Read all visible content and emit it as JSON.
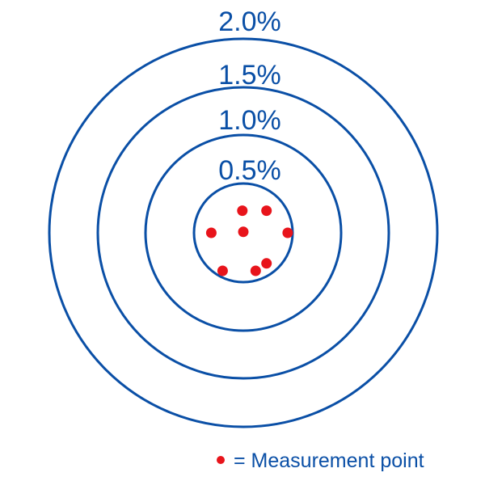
{
  "colors": {
    "ring": "#0a4fa6",
    "point": "#e8141b",
    "background": "#ffffff"
  },
  "rings": [
    {
      "label": "2.0%"
    },
    {
      "label": "1.5%"
    },
    {
      "label": "1.0%"
    },
    {
      "label": "0.5%"
    }
  ],
  "points": [
    {
      "x": -0.02,
      "y": 0.45
    },
    {
      "x": 0.47,
      "y": 0.45
    },
    {
      "x": -0.65,
      "y": 0.0
    },
    {
      "x": 0.0,
      "y": 0.02
    },
    {
      "x": 0.9,
      "y": 0.0
    },
    {
      "x": 0.47,
      "y": -0.62
    },
    {
      "x": -0.42,
      "y": -0.77
    },
    {
      "x": 0.25,
      "y": -0.77
    }
  ],
  "legend": {
    "label": "= Measurement point"
  }
}
